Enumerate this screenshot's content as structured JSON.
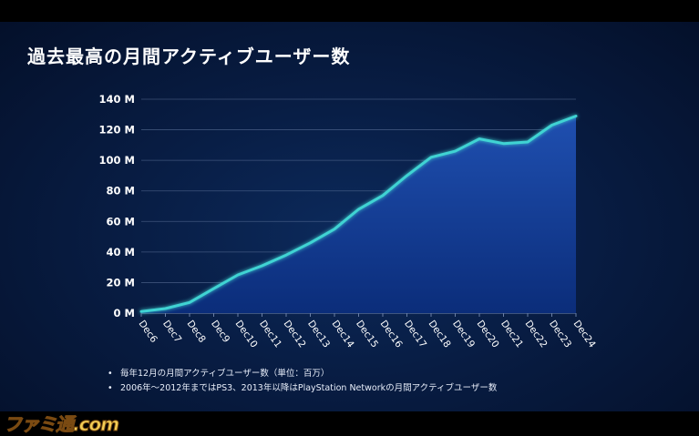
{
  "slide": {
    "notes": [
      "毎年12月の月間アクティブユーザー数（単位：百万）",
      "2006年～2012年まではPS3、2013年以降はPlayStation Networkの月間アクティブユーザー数"
    ],
    "bullet": "•"
  },
  "watermark": {
    "text": "ファミ通.com"
  },
  "colors": {
    "line": "#3fd3d3",
    "area_top": "#1f4fb0",
    "area_bottom": "#0b2d7a",
    "grid": "#6a7fa6",
    "text": "#ffffff"
  },
  "chart_data": {
    "type": "area",
    "title": "過去最高の月間アクティブユーザー数",
    "categories": [
      "Dec6",
      "Dec7",
      "Dec8",
      "Dec9",
      "Dec10",
      "Dec11",
      "Dec12",
      "Dec13",
      "Dec14",
      "Dec15",
      "Dec16",
      "Dec17",
      "Dec18",
      "Dec19",
      "Dec20",
      "Dec21",
      "Dec22",
      "Dec23",
      "Dec24"
    ],
    "series": [
      {
        "values": [
          1,
          3,
          7,
          16,
          25,
          31,
          38,
          46,
          55,
          68,
          77,
          90,
          102,
          106,
          114,
          111,
          112,
          123,
          129
        ]
      }
    ],
    "yticks": [
      "0 M",
      "20 M",
      "40 M",
      "60 M",
      "80 M",
      "100 M",
      "120 M",
      "140 M"
    ],
    "ylim": [
      0,
      140
    ],
    "grid": true
  }
}
